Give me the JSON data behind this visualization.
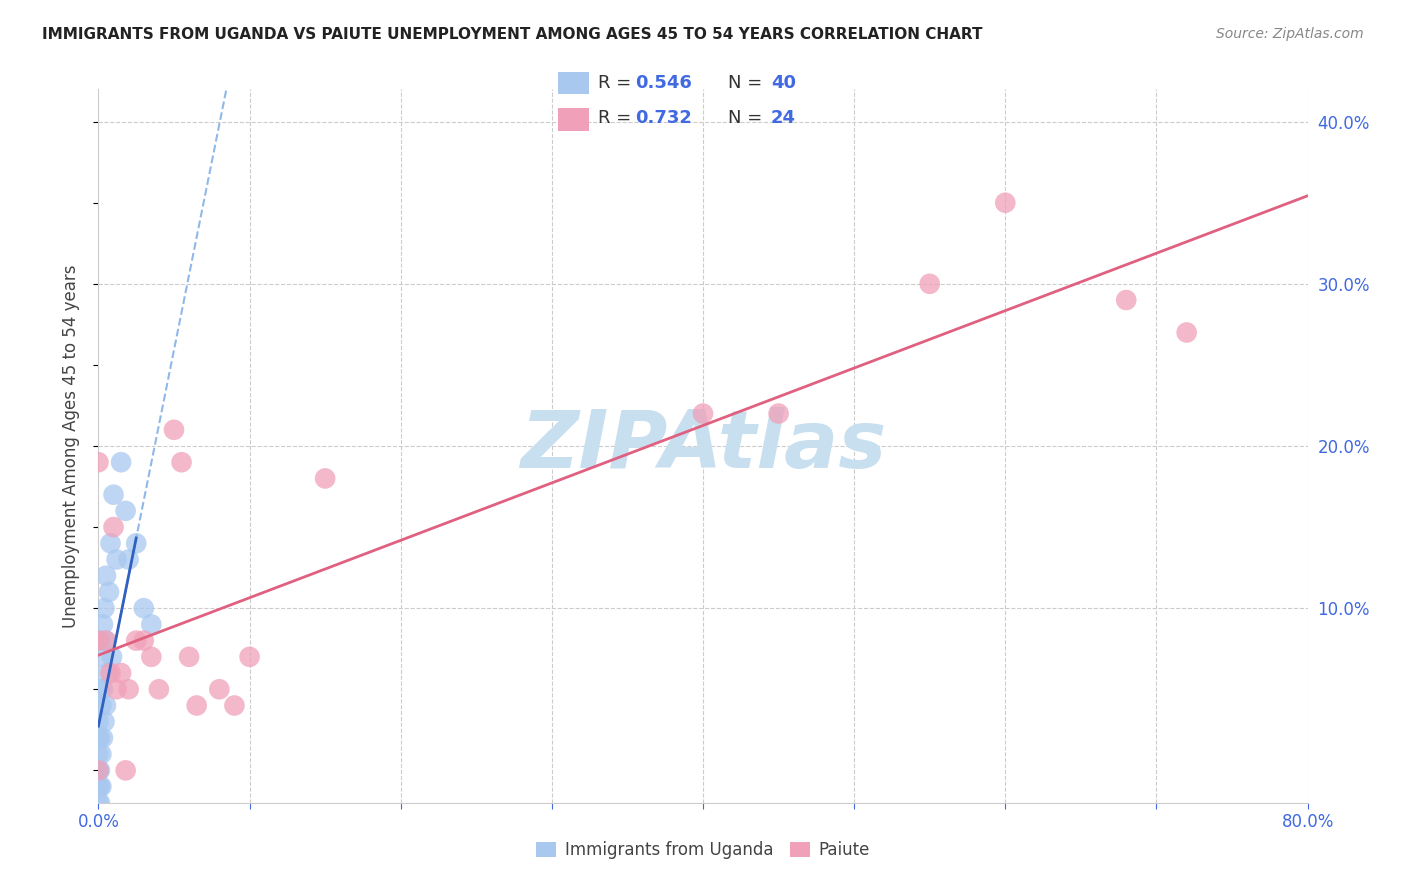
{
  "title": "IMMIGRANTS FROM UGANDA VS PAIUTE UNEMPLOYMENT AMONG AGES 45 TO 54 YEARS CORRELATION CHART",
  "source": "Source: ZipAtlas.com",
  "ylabel": "Unemployment Among Ages 45 to 54 years",
  "xlim": [
    0.0,
    0.8
  ],
  "ylim": [
    -0.02,
    0.42
  ],
  "blue_color": "#a8c8f0",
  "pink_color": "#f0a0b8",
  "blue_line_color": "#3060c0",
  "pink_line_color": "#e06080",
  "watermark_color": "#c8dff0",
  "title_color": "#222222",
  "source_color": "#888888",
  "tick_color": "#4169e1",
  "grid_color": "#cccccc",
  "ylabel_color": "#444444",
  "uganda_x": [
    0.0,
    0.0,
    0.0,
    0.0,
    0.0,
    0.0,
    0.0,
    0.0,
    0.0,
    0.0,
    0.001,
    0.001,
    0.001,
    0.001,
    0.001,
    0.001,
    0.002,
    0.002,
    0.002,
    0.002,
    0.003,
    0.003,
    0.003,
    0.004,
    0.004,
    0.005,
    0.005,
    0.005,
    0.006,
    0.007,
    0.008,
    0.009,
    0.01,
    0.012,
    0.015,
    0.018,
    0.02,
    0.025,
    0.03,
    0.035
  ],
  "uganda_y": [
    0.0,
    0.0,
    0.0,
    0.01,
    0.02,
    0.03,
    -0.01,
    -0.02,
    -0.03,
    -0.04,
    0.0,
    0.02,
    0.05,
    0.08,
    -0.01,
    -0.02,
    0.01,
    0.04,
    0.07,
    -0.01,
    0.02,
    0.05,
    0.09,
    0.03,
    0.1,
    0.04,
    0.08,
    0.12,
    0.06,
    0.11,
    0.14,
    0.07,
    0.17,
    0.13,
    0.19,
    0.16,
    0.13,
    0.14,
    0.1,
    0.09
  ],
  "paiute_x": [
    0.0,
    0.0,
    0.0,
    0.005,
    0.008,
    0.01,
    0.012,
    0.015,
    0.018,
    0.02,
    0.025,
    0.03,
    0.035,
    0.04,
    0.05,
    0.055,
    0.06,
    0.065,
    0.08,
    0.09,
    0.1,
    0.15,
    0.4,
    0.45,
    0.55,
    0.6,
    0.68,
    0.72
  ],
  "paiute_y": [
    0.19,
    0.08,
    0.0,
    0.08,
    0.06,
    0.15,
    0.05,
    0.06,
    0.0,
    0.05,
    0.08,
    0.08,
    0.07,
    0.05,
    0.21,
    0.19,
    0.07,
    0.04,
    0.05,
    0.04,
    0.07,
    0.18,
    0.22,
    0.22,
    0.3,
    0.35,
    0.29,
    0.27
  ]
}
